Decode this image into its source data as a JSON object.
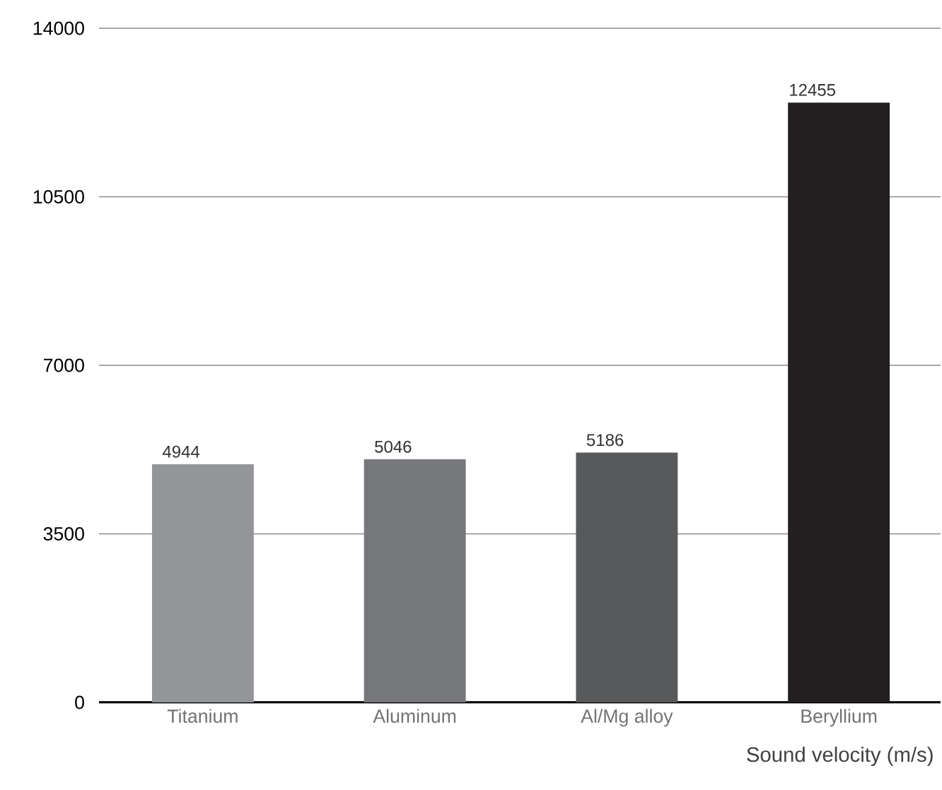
{
  "chart_data": {
    "type": "bar",
    "xlabel": "Sound velocity (m/s)",
    "categories": [
      "Titanium",
      "Aluminum",
      "Al/Mg alloy",
      "Beryllium"
    ],
    "values": [
      4944,
      5046,
      5186,
      12455
    ],
    "colors": [
      "#939598",
      "#77787b",
      "#58595b",
      "#231f20"
    ],
    "ylim": [
      0,
      14000
    ],
    "yticks": [
      0,
      3500,
      7000,
      10500,
      14000
    ],
    "grid": "y",
    "data_labels": true
  }
}
